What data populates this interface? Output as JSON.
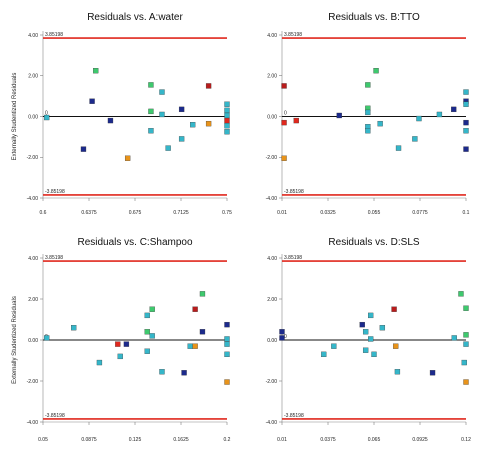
{
  "chart_data": [
    {
      "type": "scatter",
      "title": "Residuals vs. A:water",
      "xlabel": "",
      "ylabel": "Externally Studentized Residuals",
      "xlim": [
        0.6,
        0.75
      ],
      "ylim": [
        -4,
        4
      ],
      "xticks": [
        "0.6",
        "0.6375",
        "0.675",
        "0.7125",
        "0.75"
      ],
      "yticks": [
        "4.00",
        "2.00",
        "0.00",
        "-2.00",
        "-4.00"
      ],
      "limits": [
        3.85198,
        -3.85198
      ],
      "limit_labels": [
        "3.85198",
        "-3.85198"
      ],
      "zero_label": "0",
      "points": [
        {
          "x": 0.603,
          "y": -0.05,
          "color": "#35b6c9"
        },
        {
          "x": 0.633,
          "y": -1.6,
          "color": "#1c2a8c"
        },
        {
          "x": 0.64,
          "y": 0.75,
          "color": "#1c2a8c"
        },
        {
          "x": 0.643,
          "y": 2.25,
          "color": "#3ec96e"
        },
        {
          "x": 0.655,
          "y": -0.2,
          "color": "#1c2a8c"
        },
        {
          "x": 0.669,
          "y": -2.05,
          "color": "#e8931a"
        },
        {
          "x": 0.688,
          "y": 1.55,
          "color": "#3ec96e"
        },
        {
          "x": 0.688,
          "y": 0.25,
          "color": "#3ec96e"
        },
        {
          "x": 0.688,
          "y": -0.7,
          "color": "#35b6c9"
        },
        {
          "x": 0.697,
          "y": 1.2,
          "color": "#35b6c9"
        },
        {
          "x": 0.697,
          "y": 0.1,
          "color": "#35b6c9"
        },
        {
          "x": 0.702,
          "y": -1.55,
          "color": "#35b6c9"
        },
        {
          "x": 0.713,
          "y": -1.1,
          "color": "#35b6c9"
        },
        {
          "x": 0.713,
          "y": 0.35,
          "color": "#1c2a8c"
        },
        {
          "x": 0.722,
          "y": -0.4,
          "color": "#35b6c9"
        },
        {
          "x": 0.735,
          "y": 1.5,
          "color": "#b91c1c"
        },
        {
          "x": 0.735,
          "y": -0.35,
          "color": "#e8931a"
        },
        {
          "x": 0.75,
          "y": 0.6,
          "color": "#35b6c9"
        },
        {
          "x": 0.75,
          "y": 0.3,
          "color": "#35b6c9"
        },
        {
          "x": 0.75,
          "y": 0.05,
          "color": "#35b6c9"
        },
        {
          "x": 0.75,
          "y": -0.2,
          "color": "#e0281e"
        },
        {
          "x": 0.75,
          "y": -0.45,
          "color": "#35b6c9"
        },
        {
          "x": 0.75,
          "y": -0.75,
          "color": "#35b6c9"
        }
      ]
    },
    {
      "type": "scatter",
      "title": "Residuals vs. B:TTO",
      "xlabel": "",
      "ylabel": "",
      "xlim": [
        0.01,
        0.1
      ],
      "ylim": [
        -4,
        4
      ],
      "xticks": [
        "0.01",
        "0.0325",
        "0.055",
        "0.0775",
        "0.1"
      ],
      "yticks": [
        "4.00",
        "2.00",
        "0.00",
        "-2.00",
        "-4.00"
      ],
      "limits": [
        3.85198,
        -3.85198
      ],
      "limit_labels": [
        "3.85198",
        "-3.85198"
      ],
      "zero_label": "0",
      "points": [
        {
          "x": 0.011,
          "y": 1.5,
          "color": "#b91c1c"
        },
        {
          "x": 0.011,
          "y": -0.3,
          "color": "#e0281e"
        },
        {
          "x": 0.011,
          "y": -2.05,
          "color": "#e8931a"
        },
        {
          "x": 0.017,
          "y": -0.2,
          "color": "#e0281e"
        },
        {
          "x": 0.038,
          "y": 0.05,
          "color": "#1c2a8c"
        },
        {
          "x": 0.052,
          "y": 1.55,
          "color": "#3ec96e"
        },
        {
          "x": 0.052,
          "y": 0.4,
          "color": "#3ec96e"
        },
        {
          "x": 0.052,
          "y": 0.2,
          "color": "#35b6c9"
        },
        {
          "x": 0.052,
          "y": -0.5,
          "color": "#35b6c9"
        },
        {
          "x": 0.052,
          "y": -0.7,
          "color": "#35b6c9"
        },
        {
          "x": 0.056,
          "y": 2.25,
          "color": "#3ec96e"
        },
        {
          "x": 0.058,
          "y": -0.35,
          "color": "#35b6c9"
        },
        {
          "x": 0.067,
          "y": -1.55,
          "color": "#35b6c9"
        },
        {
          "x": 0.075,
          "y": -1.1,
          "color": "#35b6c9"
        },
        {
          "x": 0.077,
          "y": -0.1,
          "color": "#35b6c9"
        },
        {
          "x": 0.087,
          "y": 0.1,
          "color": "#35b6c9"
        },
        {
          "x": 0.094,
          "y": 0.35,
          "color": "#1c2a8c"
        },
        {
          "x": 0.1,
          "y": 1.2,
          "color": "#35b6c9"
        },
        {
          "x": 0.1,
          "y": 0.75,
          "color": "#1c2a8c"
        },
        {
          "x": 0.1,
          "y": 0.6,
          "color": "#35b6c9"
        },
        {
          "x": 0.1,
          "y": -0.3,
          "color": "#1c2a8c"
        },
        {
          "x": 0.1,
          "y": -0.7,
          "color": "#35b6c9"
        },
        {
          "x": 0.1,
          "y": -1.6,
          "color": "#1c2a8c"
        }
      ]
    },
    {
      "type": "scatter",
      "title": "Residuals vs. C:Shampoo",
      "xlabel": "",
      "ylabel": "Externally Studentized Residuals",
      "xlim": [
        0.05,
        0.2
      ],
      "ylim": [
        -4,
        4
      ],
      "xticks": [
        "0.05",
        "0.0875",
        "0.125",
        "0.1625",
        "0.2"
      ],
      "yticks": [
        "4.00",
        "2.00",
        "0.00",
        "-2.00",
        "-4.00"
      ],
      "limits": [
        3.85198,
        -3.85198
      ],
      "limit_labels": [
        "3.85198",
        "-3.85198"
      ],
      "zero_label": "0",
      "points": [
        {
          "x": 0.053,
          "y": 0.1,
          "color": "#35b6c9"
        },
        {
          "x": 0.075,
          "y": 0.6,
          "color": "#35b6c9"
        },
        {
          "x": 0.096,
          "y": -1.1,
          "color": "#35b6c9"
        },
        {
          "x": 0.111,
          "y": -0.2,
          "color": "#e0281e"
        },
        {
          "x": 0.113,
          "y": -0.8,
          "color": "#35b6c9"
        },
        {
          "x": 0.118,
          "y": -0.2,
          "color": "#1c2a8c"
        },
        {
          "x": 0.135,
          "y": 1.2,
          "color": "#35b6c9"
        },
        {
          "x": 0.135,
          "y": 0.4,
          "color": "#3ec96e"
        },
        {
          "x": 0.135,
          "y": -0.55,
          "color": "#35b6c9"
        },
        {
          "x": 0.139,
          "y": 1.5,
          "color": "#3ec96e"
        },
        {
          "x": 0.139,
          "y": 0.2,
          "color": "#35b6c9"
        },
        {
          "x": 0.147,
          "y": -1.55,
          "color": "#35b6c9"
        },
        {
          "x": 0.165,
          "y": -1.6,
          "color": "#1c2a8c"
        },
        {
          "x": 0.17,
          "y": -0.3,
          "color": "#35b6c9"
        },
        {
          "x": 0.174,
          "y": 1.5,
          "color": "#b91c1c"
        },
        {
          "x": 0.174,
          "y": -0.3,
          "color": "#e8931a"
        },
        {
          "x": 0.18,
          "y": 2.25,
          "color": "#3ec96e"
        },
        {
          "x": 0.18,
          "y": 0.4,
          "color": "#1c2a8c"
        },
        {
          "x": 0.2,
          "y": 0.75,
          "color": "#1c2a8c"
        },
        {
          "x": 0.2,
          "y": 0.05,
          "color": "#35b6c9"
        },
        {
          "x": 0.2,
          "y": -0.2,
          "color": "#35b6c9"
        },
        {
          "x": 0.2,
          "y": -0.7,
          "color": "#35b6c9"
        },
        {
          "x": 0.2,
          "y": -2.05,
          "color": "#e8931a"
        }
      ]
    },
    {
      "type": "scatter",
      "title": "Residuals vs. D:SLS",
      "xlabel": "",
      "ylabel": "",
      "xlim": [
        0.01,
        0.12
      ],
      "ylim": [
        -4,
        4
      ],
      "xticks": [
        "0.01",
        "0.0375",
        "0.065",
        "0.0925",
        "0.12"
      ],
      "yticks": [
        "4.00",
        "2.00",
        "0.00",
        "-2.00",
        "-4.00"
      ],
      "limits": [
        3.85198,
        -3.85198
      ],
      "limit_labels": [
        "3.85198",
        "-3.85198"
      ],
      "zero_label": "0",
      "points": [
        {
          "x": 0.01,
          "y": 0.4,
          "color": "#1c2a8c"
        },
        {
          "x": 0.01,
          "y": 0.1,
          "color": "#1c2a8c"
        },
        {
          "x": 0.035,
          "y": -0.7,
          "color": "#35b6c9"
        },
        {
          "x": 0.041,
          "y": -0.3,
          "color": "#35b6c9"
        },
        {
          "x": 0.058,
          "y": 0.75,
          "color": "#1c2a8c"
        },
        {
          "x": 0.06,
          "y": 0.4,
          "color": "#35b6c9"
        },
        {
          "x": 0.06,
          "y": -0.5,
          "color": "#35b6c9"
        },
        {
          "x": 0.063,
          "y": 1.2,
          "color": "#35b6c9"
        },
        {
          "x": 0.063,
          "y": 0.05,
          "color": "#35b6c9"
        },
        {
          "x": 0.065,
          "y": -0.7,
          "color": "#35b6c9"
        },
        {
          "x": 0.07,
          "y": 0.6,
          "color": "#35b6c9"
        },
        {
          "x": 0.077,
          "y": 1.5,
          "color": "#b91c1c"
        },
        {
          "x": 0.078,
          "y": -0.3,
          "color": "#e8931a"
        },
        {
          "x": 0.079,
          "y": -1.55,
          "color": "#35b6c9"
        },
        {
          "x": 0.1,
          "y": -1.6,
          "color": "#1c2a8c"
        },
        {
          "x": 0.113,
          "y": 0.1,
          "color": "#35b6c9"
        },
        {
          "x": 0.117,
          "y": 2.25,
          "color": "#3ec96e"
        },
        {
          "x": 0.12,
          "y": 1.55,
          "color": "#3ec96e"
        },
        {
          "x": 0.12,
          "y": 0.25,
          "color": "#3ec96e"
        },
        {
          "x": 0.12,
          "y": -0.2,
          "color": "#35b6c9"
        },
        {
          "x": 0.119,
          "y": -1.1,
          "color": "#35b6c9"
        },
        {
          "x": 0.12,
          "y": -2.05,
          "color": "#e8931a"
        }
      ]
    }
  ]
}
